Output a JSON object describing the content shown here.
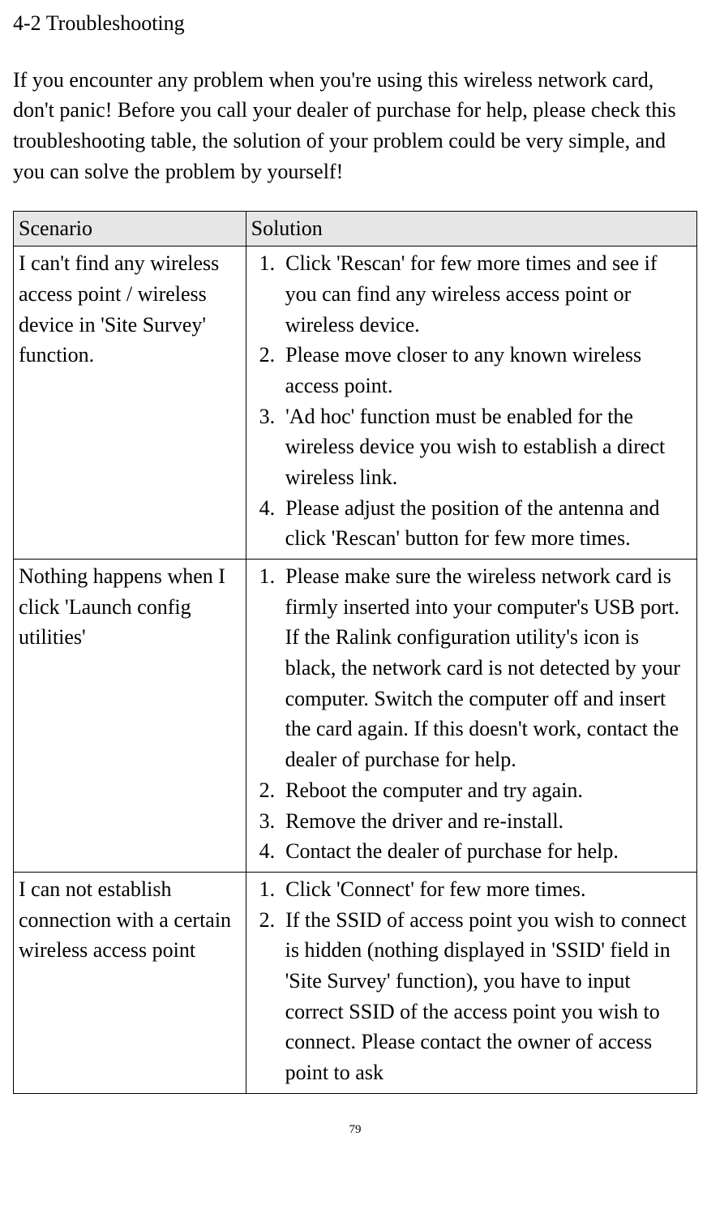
{
  "heading": "4-2 Troubleshooting",
  "intro": "If you encounter any problem when you're using this wireless network card, don't panic! Before you call your dealer of purchase for help, please check this troubleshooting table, the solution of your problem could be very simple, and you can solve the problem by yourself!",
  "table": {
    "header_bg": "#e6e6e6",
    "border_color": "#000000",
    "columns": {
      "scenario": "Scenario",
      "solution": "Solution"
    },
    "rows": [
      {
        "scenario": "I can't find any wireless access point / wireless device in 'Site Survey' function.",
        "solutions": [
          "Click 'Rescan' for few more times and see if you can find any wireless access point or wireless device.",
          "Please move closer to any known wireless access point.",
          "'Ad hoc' function must be enabled for the wireless device you wish to establish a direct wireless link.",
          "Please adjust the position of the antenna and click 'Rescan' button for few more times."
        ]
      },
      {
        "scenario": "Nothing happens when I click 'Launch config utilities'",
        "solutions": [
          "Please make sure the wireless network card is firmly inserted into your computer's USB port. If the Ralink configuration utility's icon is black, the network card is not detected by your computer. Switch the computer off and insert the card again. If this doesn't work, contact the dealer of purchase for help.",
          "Reboot the computer and try again.",
          "Remove the driver and re-install.",
          "Contact the dealer of purchase for help."
        ]
      },
      {
        "scenario": "I can not establish connection with a certain wireless access point",
        "solutions": [
          "Click 'Connect' for few more times.",
          "If the SSID of access point you wish to connect is hidden (nothing displayed in 'SSID' field in 'Site Survey' function), you have to input correct SSID of the access point you wish to connect. Please contact the owner of access point to ask"
        ]
      }
    ]
  },
  "page_number": "79",
  "styling": {
    "font_family": "Times New Roman",
    "body_fontsize": 26,
    "pagenum_fontsize": 15,
    "text_color": "#000000",
    "background_color": "#ffffff"
  }
}
